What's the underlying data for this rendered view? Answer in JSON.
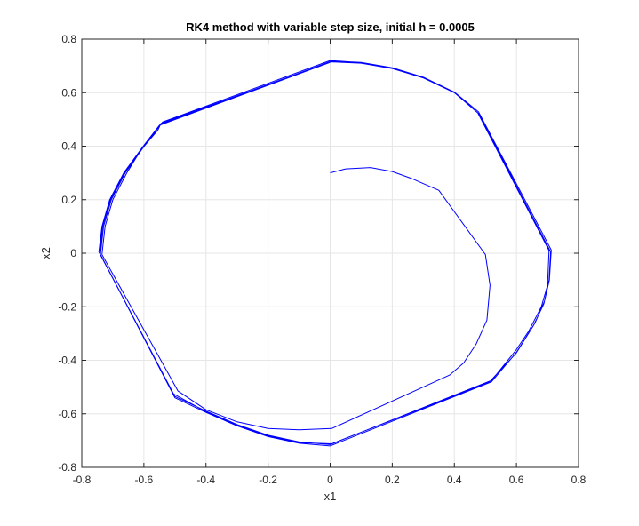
{
  "chart_data": {
    "type": "line",
    "title": "RK4 method with variable step size, initial h = 0.0005",
    "xlabel": "x1",
    "ylabel": "x2",
    "xlim": [
      -0.8,
      0.8
    ],
    "ylim": [
      -0.8,
      0.8
    ],
    "xticks": [
      -0.8,
      -0.6,
      -0.4,
      -0.2,
      0,
      0.2,
      0.4,
      0.6,
      0.8
    ],
    "yticks": [
      -0.8,
      -0.6,
      -0.4,
      -0.2,
      0,
      0.2,
      0.4,
      0.6,
      0.8
    ],
    "xtick_labels": [
      "-0.8",
      "-0.6",
      "-0.4",
      "-0.2",
      "0",
      "0.2",
      "0.4",
      "0.6",
      "0.8"
    ],
    "ytick_labels": [
      "-0.8",
      "-0.6",
      "-0.4",
      "-0.2",
      "0",
      "0.2",
      "0.4",
      "0.6",
      "0.8"
    ],
    "grid": true,
    "line_color": "#0000ff",
    "axis_color": "#262626",
    "grid_color": "#e6e6e6",
    "series": [
      {
        "points": [
          [
            0.0,
            0.3
          ],
          [
            0.05,
            0.315
          ],
          [
            0.13,
            0.32
          ],
          [
            0.2,
            0.305
          ],
          [
            0.26,
            0.28
          ],
          [
            0.32,
            0.25
          ],
          [
            0.35,
            0.235
          ],
          [
            0.5,
            -0.005
          ],
          [
            0.515,
            -0.12
          ],
          [
            0.505,
            -0.25
          ],
          [
            0.47,
            -0.34
          ],
          [
            0.43,
            -0.41
          ],
          [
            0.385,
            -0.455
          ],
          [
            0.005,
            -0.655
          ],
          [
            -0.1,
            -0.66
          ],
          [
            -0.2,
            -0.655
          ],
          [
            -0.3,
            -0.63
          ],
          [
            -0.4,
            -0.585
          ],
          [
            -0.49,
            -0.515
          ],
          [
            -0.735,
            -0.005
          ],
          [
            -0.725,
            0.1
          ],
          [
            -0.7,
            0.2
          ],
          [
            -0.655,
            0.3
          ],
          [
            -0.61,
            0.385
          ],
          [
            -0.555,
            0.46
          ],
          [
            -0.545,
            0.485
          ],
          [
            0.0,
            0.715
          ],
          [
            0.1,
            0.71
          ],
          [
            0.2,
            0.69
          ],
          [
            0.3,
            0.655
          ],
          [
            0.4,
            0.6
          ],
          [
            0.475,
            0.525
          ],
          [
            0.705,
            0.01
          ],
          [
            0.7,
            -0.12
          ],
          [
            0.68,
            -0.2
          ],
          [
            0.64,
            -0.29
          ],
          [
            0.6,
            -0.36
          ],
          [
            0.555,
            -0.425
          ],
          [
            0.52,
            -0.475
          ],
          [
            0.0,
            -0.715
          ],
          [
            -0.1,
            -0.705
          ],
          [
            -0.2,
            -0.68
          ],
          [
            -0.3,
            -0.64
          ],
          [
            -0.4,
            -0.59
          ],
          [
            -0.5,
            -0.535
          ],
          [
            -0.74,
            -0.005
          ],
          [
            -0.73,
            0.1
          ],
          [
            -0.705,
            0.2
          ],
          [
            -0.66,
            0.3
          ],
          [
            -0.605,
            0.39
          ],
          [
            -0.54,
            0.49
          ],
          [
            0.0,
            0.72
          ],
          [
            0.1,
            0.712
          ],
          [
            0.2,
            0.692
          ],
          [
            0.3,
            0.657
          ],
          [
            0.4,
            0.6
          ],
          [
            0.48,
            0.52
          ],
          [
            0.71,
            0.005
          ],
          [
            0.705,
            -0.1
          ],
          [
            0.69,
            -0.18
          ],
          [
            0.66,
            -0.26
          ],
          [
            0.6,
            -0.37
          ],
          [
            0.52,
            -0.48
          ],
          [
            0.0,
            -0.72
          ],
          [
            -0.1,
            -0.71
          ],
          [
            -0.2,
            -0.685
          ],
          [
            -0.3,
            -0.645
          ],
          [
            -0.4,
            -0.595
          ],
          [
            -0.5,
            -0.54
          ],
          [
            -0.742,
            0.0
          ],
          [
            -0.733,
            0.1
          ],
          [
            -0.708,
            0.2
          ],
          [
            -0.663,
            0.3
          ],
          [
            -0.6,
            0.4
          ],
          [
            -0.548,
            0.48
          ],
          [
            0.005,
            0.718
          ],
          [
            0.1,
            0.713
          ],
          [
            0.2,
            0.693
          ],
          [
            0.3,
            0.658
          ],
          [
            0.4,
            0.602
          ],
          [
            0.478,
            0.528
          ],
          [
            0.712,
            0.012
          ],
          [
            0.706,
            -0.1
          ],
          [
            0.688,
            -0.19
          ],
          [
            0.655,
            -0.27
          ],
          [
            0.6,
            -0.372
          ],
          [
            0.512,
            -0.482
          ],
          [
            0.005,
            -0.712
          ],
          [
            -0.1,
            -0.708
          ],
          [
            -0.2,
            -0.683
          ],
          [
            -0.3,
            -0.643
          ],
          [
            -0.4,
            -0.593
          ],
          [
            -0.505,
            -0.525
          ],
          [
            -0.745,
            0.005
          ],
          [
            -0.735,
            0.1
          ],
          [
            -0.71,
            0.2
          ],
          [
            -0.665,
            0.3
          ],
          [
            -0.6,
            0.403
          ],
          [
            -0.55,
            0.478
          ],
          [
            0.0,
            0.713
          ]
        ]
      }
    ]
  }
}
